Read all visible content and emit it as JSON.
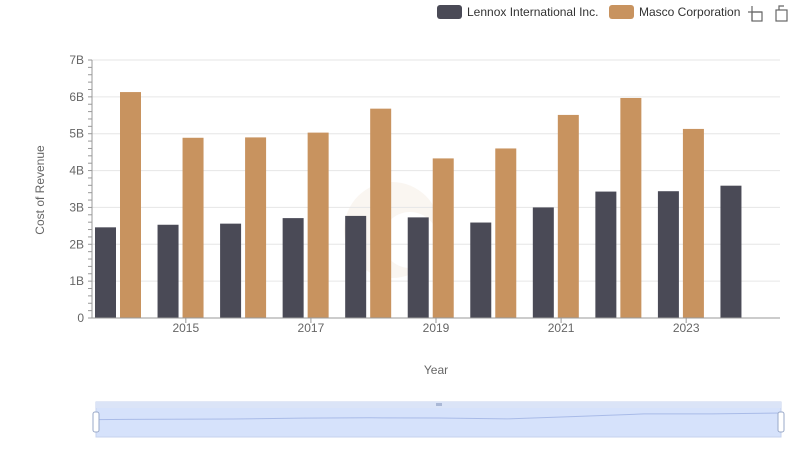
{
  "toolbar": {
    "icons": [
      "zoom-icon",
      "reset-icon"
    ]
  },
  "colors": {
    "lennox": "#4a4a56",
    "masco": "#c8935f",
    "grid": "#e6e6e6",
    "zoom_fill": "#d6e2fb",
    "zoom_line": "#a9bbe8"
  },
  "chart_data": {
    "type": "bar",
    "xlabel": "Year",
    "ylabel": "Cost of Revenue",
    "ylim": [
      0,
      7000000000
    ],
    "yticks": [
      {
        "value": 0,
        "label": "0"
      },
      {
        "value": 1000000000,
        "label": "1B"
      },
      {
        "value": 2000000000,
        "label": "2B"
      },
      {
        "value": 3000000000,
        "label": "3B"
      },
      {
        "value": 4000000000,
        "label": "4B"
      },
      {
        "value": 5000000000,
        "label": "5B"
      },
      {
        "value": 6000000000,
        "label": "6B"
      },
      {
        "value": 7000000000,
        "label": "7B"
      }
    ],
    "categories": [
      2014,
      2015,
      2016,
      2017,
      2018,
      2019,
      2020,
      2021,
      2022,
      2023,
      2024
    ],
    "xtick_labels": [
      "2015",
      "2017",
      "2019",
      "2021",
      "2023"
    ],
    "xtick_values": [
      2015,
      2017,
      2019,
      2021,
      2023
    ],
    "legend_position": "top-right",
    "grid": true,
    "series": [
      {
        "name": "Lennox International Inc.",
        "values": [
          2460000000,
          2530000000,
          2560000000,
          2710000000,
          2770000000,
          2730000000,
          2590000000,
          3000000000,
          3430000000,
          3440000000,
          3590000000
        ]
      },
      {
        "name": "Masco Corporation",
        "values": [
          6130000000,
          4890000000,
          4900000000,
          5030000000,
          5680000000,
          4330000000,
          4600000000,
          5510000000,
          5970000000,
          5130000000,
          null
        ]
      }
    ]
  }
}
